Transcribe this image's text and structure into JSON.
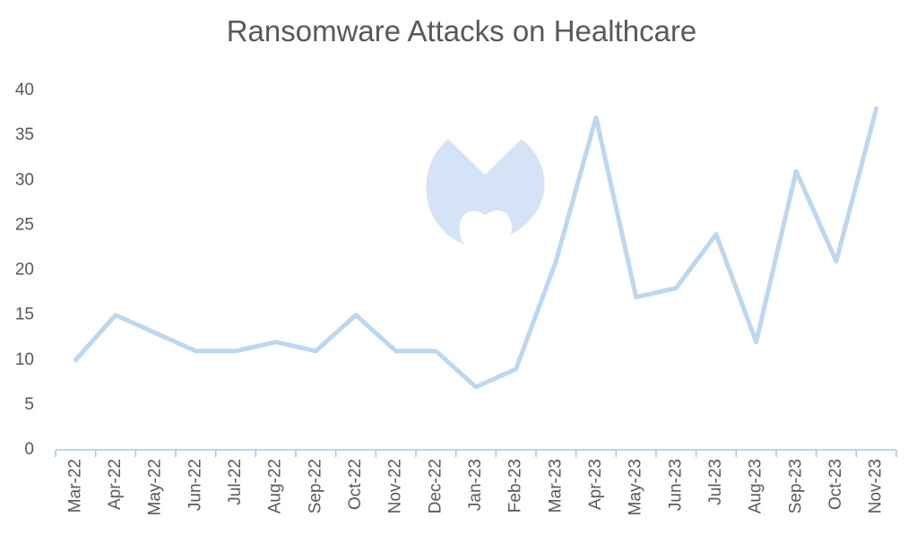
{
  "chart_data": {
    "type": "line",
    "title": "Ransomware Attacks on Healthcare",
    "categories": [
      "Mar-22",
      "Apr-22",
      "May-22",
      "Jun-22",
      "Jul-22",
      "Aug-22",
      "Sep-22",
      "Oct-22",
      "Nov-22",
      "Dec-22",
      "Jan-23",
      "Feb-23",
      "Mar-23",
      "Apr-23",
      "May-23",
      "Jun-23",
      "Jul-23",
      "Aug-23",
      "Sep-23",
      "Oct-23",
      "Nov-23"
    ],
    "values": [
      10,
      15,
      13,
      11,
      11,
      12,
      11,
      15,
      11,
      11,
      7,
      9,
      21,
      37,
      17,
      18,
      24,
      12,
      31,
      21,
      38
    ],
    "color": "#bdd7ee",
    "ylim": [
      0,
      40
    ],
    "yticks": [
      0,
      5,
      10,
      15,
      20,
      25,
      30,
      35,
      40
    ],
    "grid": false
  }
}
